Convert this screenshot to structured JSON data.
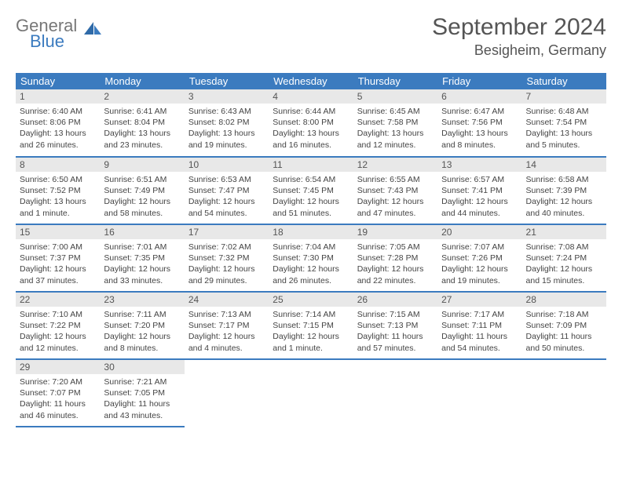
{
  "logo": {
    "general": "General",
    "blue": "Blue"
  },
  "title": "September 2024",
  "location": "Besigheim, Germany",
  "colors": {
    "header_blue": "#3b7bbf",
    "daynum_bg": "#e8e8e8",
    "text": "#444444",
    "title": "#555555"
  },
  "dayNames": [
    "Sunday",
    "Monday",
    "Tuesday",
    "Wednesday",
    "Thursday",
    "Friday",
    "Saturday"
  ],
  "days": [
    {
      "n": "1",
      "sr": "6:40 AM",
      "ss": "8:06 PM",
      "dl": "13 hours and 26 minutes."
    },
    {
      "n": "2",
      "sr": "6:41 AM",
      "ss": "8:04 PM",
      "dl": "13 hours and 23 minutes."
    },
    {
      "n": "3",
      "sr": "6:43 AM",
      "ss": "8:02 PM",
      "dl": "13 hours and 19 minutes."
    },
    {
      "n": "4",
      "sr": "6:44 AM",
      "ss": "8:00 PM",
      "dl": "13 hours and 16 minutes."
    },
    {
      "n": "5",
      "sr": "6:45 AM",
      "ss": "7:58 PM",
      "dl": "13 hours and 12 minutes."
    },
    {
      "n": "6",
      "sr": "6:47 AM",
      "ss": "7:56 PM",
      "dl": "13 hours and 8 minutes."
    },
    {
      "n": "7",
      "sr": "6:48 AM",
      "ss": "7:54 PM",
      "dl": "13 hours and 5 minutes."
    },
    {
      "n": "8",
      "sr": "6:50 AM",
      "ss": "7:52 PM",
      "dl": "13 hours and 1 minute."
    },
    {
      "n": "9",
      "sr": "6:51 AM",
      "ss": "7:49 PM",
      "dl": "12 hours and 58 minutes."
    },
    {
      "n": "10",
      "sr": "6:53 AM",
      "ss": "7:47 PM",
      "dl": "12 hours and 54 minutes."
    },
    {
      "n": "11",
      "sr": "6:54 AM",
      "ss": "7:45 PM",
      "dl": "12 hours and 51 minutes."
    },
    {
      "n": "12",
      "sr": "6:55 AM",
      "ss": "7:43 PM",
      "dl": "12 hours and 47 minutes."
    },
    {
      "n": "13",
      "sr": "6:57 AM",
      "ss": "7:41 PM",
      "dl": "12 hours and 44 minutes."
    },
    {
      "n": "14",
      "sr": "6:58 AM",
      "ss": "7:39 PM",
      "dl": "12 hours and 40 minutes."
    },
    {
      "n": "15",
      "sr": "7:00 AM",
      "ss": "7:37 PM",
      "dl": "12 hours and 37 minutes."
    },
    {
      "n": "16",
      "sr": "7:01 AM",
      "ss": "7:35 PM",
      "dl": "12 hours and 33 minutes."
    },
    {
      "n": "17",
      "sr": "7:02 AM",
      "ss": "7:32 PM",
      "dl": "12 hours and 29 minutes."
    },
    {
      "n": "18",
      "sr": "7:04 AM",
      "ss": "7:30 PM",
      "dl": "12 hours and 26 minutes."
    },
    {
      "n": "19",
      "sr": "7:05 AM",
      "ss": "7:28 PM",
      "dl": "12 hours and 22 minutes."
    },
    {
      "n": "20",
      "sr": "7:07 AM",
      "ss": "7:26 PM",
      "dl": "12 hours and 19 minutes."
    },
    {
      "n": "21",
      "sr": "7:08 AM",
      "ss": "7:24 PM",
      "dl": "12 hours and 15 minutes."
    },
    {
      "n": "22",
      "sr": "7:10 AM",
      "ss": "7:22 PM",
      "dl": "12 hours and 12 minutes."
    },
    {
      "n": "23",
      "sr": "7:11 AM",
      "ss": "7:20 PM",
      "dl": "12 hours and 8 minutes."
    },
    {
      "n": "24",
      "sr": "7:13 AM",
      "ss": "7:17 PM",
      "dl": "12 hours and 4 minutes."
    },
    {
      "n": "25",
      "sr": "7:14 AM",
      "ss": "7:15 PM",
      "dl": "12 hours and 1 minute."
    },
    {
      "n": "26",
      "sr": "7:15 AM",
      "ss": "7:13 PM",
      "dl": "11 hours and 57 minutes."
    },
    {
      "n": "27",
      "sr": "7:17 AM",
      "ss": "7:11 PM",
      "dl": "11 hours and 54 minutes."
    },
    {
      "n": "28",
      "sr": "7:18 AM",
      "ss": "7:09 PM",
      "dl": "11 hours and 50 minutes."
    },
    {
      "n": "29",
      "sr": "7:20 AM",
      "ss": "7:07 PM",
      "dl": "11 hours and 46 minutes."
    },
    {
      "n": "30",
      "sr": "7:21 AM",
      "ss": "7:05 PM",
      "dl": "11 hours and 43 minutes."
    }
  ],
  "labels": {
    "sunrise": "Sunrise:",
    "sunset": "Sunset:",
    "daylight": "Daylight:"
  },
  "layout": {
    "startDay": 0,
    "cols": 7
  }
}
